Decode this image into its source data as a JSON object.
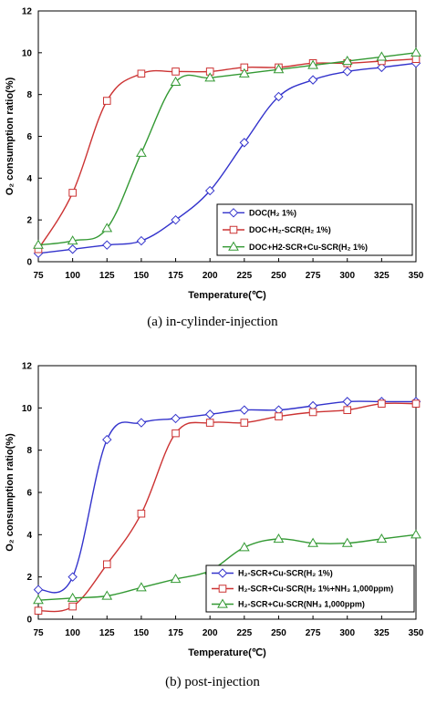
{
  "colors": {
    "blue": "#3333cc",
    "red": "#cc3333",
    "green": "#339933"
  },
  "chart_data": [
    {
      "type": "line",
      "caption": "(a)  in-cylinder-injection",
      "xlabel": "Temperature(℃)",
      "ylabel": "O₂ consumption ratio(%)",
      "xlim": [
        75,
        350
      ],
      "ylim": [
        0,
        12
      ],
      "xticks": [
        75,
        100,
        125,
        150,
        175,
        200,
        225,
        250,
        275,
        300,
        325,
        350
      ],
      "yticks": [
        0,
        2,
        4,
        6,
        8,
        10,
        12
      ],
      "legend": "bottom-right",
      "x": [
        75,
        100,
        125,
        150,
        175,
        200,
        225,
        250,
        275,
        300,
        325,
        350
      ],
      "series": [
        {
          "name": "DOC(H₂ 1%)",
          "marker": "diamond",
          "color": "#3333cc",
          "values": [
            0.4,
            0.6,
            0.8,
            1.0,
            2.0,
            3.4,
            5.7,
            7.9,
            8.7,
            9.1,
            9.3,
            9.5
          ]
        },
        {
          "name": "DOC+H₂-SCR(H₂ 1%)",
          "marker": "square",
          "color": "#cc3333",
          "values": [
            0.6,
            3.3,
            7.7,
            9.0,
            9.1,
            9.1,
            9.3,
            9.3,
            9.5,
            9.5,
            9.6,
            9.7
          ]
        },
        {
          "name": "DOC+H2-SCR+Cu-SCR(H₂ 1%)",
          "marker": "triangle",
          "color": "#339933",
          "values": [
            0.8,
            1.0,
            1.6,
            5.2,
            8.6,
            8.8,
            9.0,
            9.2,
            9.4,
            9.6,
            9.8,
            10.0
          ]
        }
      ]
    },
    {
      "type": "line",
      "caption": "(b)  post-injection",
      "xlabel": "Temperature(℃)",
      "ylabel": "O₂ consumption ratio(%)",
      "xlim": [
        75,
        350
      ],
      "ylim": [
        0,
        12
      ],
      "xticks": [
        75,
        100,
        125,
        150,
        175,
        200,
        225,
        250,
        275,
        300,
        325,
        350
      ],
      "yticks": [
        0,
        2,
        4,
        6,
        8,
        10,
        12
      ],
      "legend": "bottom-right",
      "x": [
        75,
        100,
        125,
        150,
        175,
        200,
        225,
        250,
        275,
        300,
        325,
        350
      ],
      "series": [
        {
          "name": "H₂-SCR+Cu-SCR(H₂ 1%)",
          "marker": "diamond",
          "color": "#3333cc",
          "values": [
            1.4,
            2.0,
            8.5,
            9.3,
            9.5,
            9.7,
            9.9,
            9.9,
            10.1,
            10.3,
            10.3,
            10.3
          ]
        },
        {
          "name": "H₂-SCR+Cu-SCR(H₂ 1%+NH₃ 1,000ppm)",
          "marker": "square",
          "color": "#cc3333",
          "values": [
            0.4,
            0.6,
            2.6,
            5.0,
            8.8,
            9.3,
            9.3,
            9.6,
            9.8,
            9.9,
            10.2,
            10.2
          ]
        },
        {
          "name": "H₂-SCR+Cu-SCR(NH₃ 1,000ppm)",
          "marker": "triangle",
          "color": "#339933",
          "values": [
            0.9,
            1.0,
            1.1,
            1.5,
            1.9,
            2.3,
            3.4,
            3.8,
            3.6,
            3.6,
            3.8,
            4.0
          ]
        }
      ]
    }
  ]
}
